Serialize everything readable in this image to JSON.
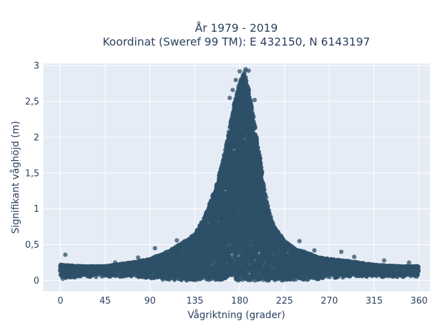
{
  "chart_data": {
    "type": "scatter",
    "title_line1": "År 1979 - 2019",
    "title_line2": "Koordinat (Sweref 99 TM): E 432150, N 6143197",
    "xlabel": "Vågriktning (grader)",
    "ylabel": "Signifikant våghöjd (m)",
    "xlim": [
      -17,
      371
    ],
    "ylim": [
      -0.15,
      3.03
    ],
    "x_ticks": [
      0,
      45,
      90,
      135,
      180,
      225,
      270,
      315,
      360
    ],
    "x_tick_labels": [
      "0",
      "45",
      "90",
      "135",
      "180",
      "225",
      "270",
      "315",
      "360"
    ],
    "y_ticks": [
      0,
      0.5,
      1,
      1.5,
      2,
      2.5,
      3
    ],
    "y_tick_labels": [
      "0",
      "0,5",
      "1",
      "1,5",
      "2",
      "2,5",
      "3"
    ],
    "grid": true,
    "colors": {
      "plot_bg": "#e5ecf6",
      "grid": "#ffffff",
      "marker": "#2e5068",
      "text": "#2a3f5f"
    },
    "envelope": {
      "x": [
        0,
        20,
        45,
        70,
        90,
        110,
        125,
        135,
        145,
        155,
        160,
        165,
        170,
        175,
        180,
        185,
        190,
        195,
        200,
        205,
        210,
        215,
        225,
        235,
        245,
        260,
        270,
        290,
        315,
        340,
        360
      ],
      "y_min": [
        0.02,
        0.05,
        0.05,
        0.05,
        0.03,
        0.0,
        0.0,
        0.0,
        0.0,
        0.0,
        0.0,
        0.0,
        0.0,
        0.0,
        0.0,
        0.0,
        0.0,
        0.0,
        0.0,
        0.0,
        0.0,
        0.0,
        0.0,
        0.0,
        0.0,
        0.02,
        0.03,
        0.05,
        0.05,
        0.05,
        0.05
      ],
      "y_max": [
        0.22,
        0.2,
        0.2,
        0.25,
        0.3,
        0.42,
        0.55,
        0.65,
        0.9,
        1.25,
        1.5,
        1.8,
        2.15,
        2.5,
        2.75,
        2.95,
        2.6,
        2.2,
        1.75,
        1.25,
        0.95,
        0.75,
        0.55,
        0.45,
        0.4,
        0.32,
        0.3,
        0.27,
        0.22,
        0.2,
        0.2
      ]
    },
    "outliers": [
      {
        "x": 5,
        "y": 0.36
      },
      {
        "x": 55,
        "y": 0.25
      },
      {
        "x": 78,
        "y": 0.32
      },
      {
        "x": 95,
        "y": 0.45
      },
      {
        "x": 105,
        "y": 0.38
      },
      {
        "x": 117,
        "y": 0.56
      },
      {
        "x": 128,
        "y": 0.5
      },
      {
        "x": 170,
        "y": 2.55
      },
      {
        "x": 173,
        "y": 2.66
      },
      {
        "x": 176,
        "y": 2.8
      },
      {
        "x": 179,
        "y": 2.72
      },
      {
        "x": 180,
        "y": 2.92
      },
      {
        "x": 184,
        "y": 2.85
      },
      {
        "x": 186,
        "y": 2.95
      },
      {
        "x": 189,
        "y": 2.93
      },
      {
        "x": 195,
        "y": 2.52
      },
      {
        "x": 240,
        "y": 0.55
      },
      {
        "x": 255,
        "y": 0.42
      },
      {
        "x": 282,
        "y": 0.4
      },
      {
        "x": 295,
        "y": 0.33
      },
      {
        "x": 325,
        "y": 0.28
      },
      {
        "x": 350,
        "y": 0.25
      }
    ]
  }
}
